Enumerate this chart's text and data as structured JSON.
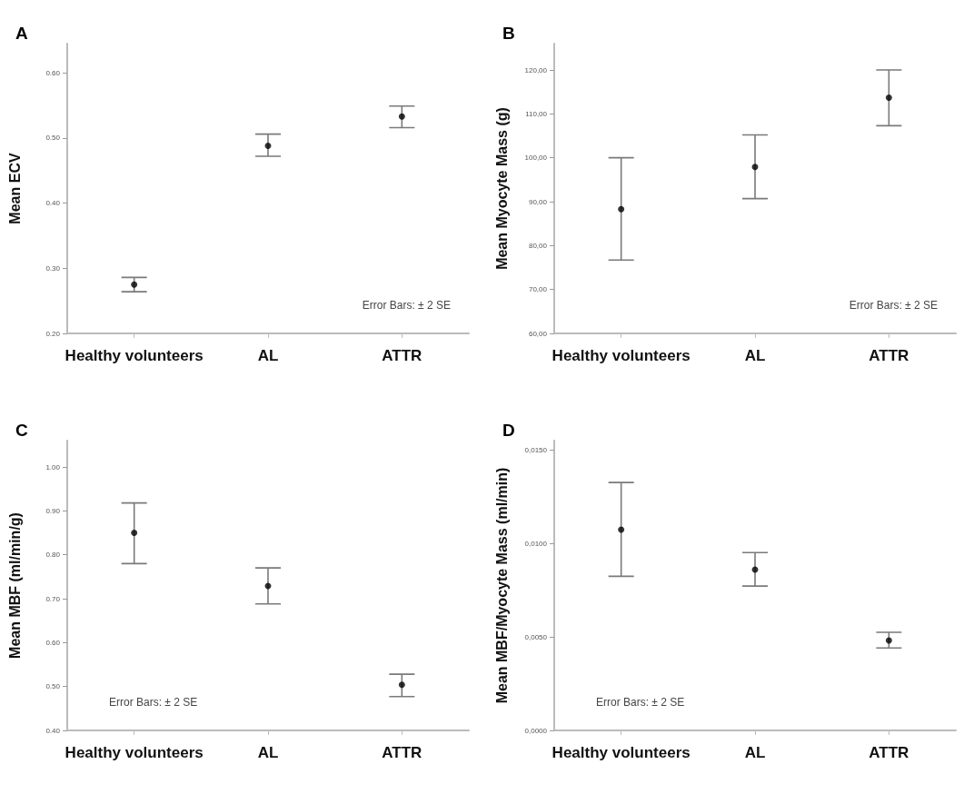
{
  "chart_data": [
    {
      "type": "scatter",
      "title": "A",
      "ylabel": "Mean ECV",
      "categories": [
        "Healthy volunteers",
        "AL",
        "ATTR"
      ],
      "marker": "circle",
      "grid": false,
      "series": [
        {
          "color": "#000000",
          "values": [
            0.275,
            0.488,
            0.533
          ],
          "errors": [
            [
              0.264,
              0.286
            ],
            [
              0.472,
              0.506
            ],
            [
              0.516,
              0.549
            ]
          ]
        }
      ],
      "ylim": [
        0.2,
        0.645
      ],
      "yticks": [
        {
          "value": 0.2,
          "label": "0.20"
        },
        {
          "value": 0.3,
          "label": "0.30"
        },
        {
          "value": 0.4,
          "label": "0.40"
        },
        {
          "value": 0.5,
          "label": "0.50"
        },
        {
          "value": 0.6,
          "label": "0.60"
        }
      ],
      "annotations": [
        "Error Bars: ± 2 SE"
      ]
    },
    {
      "type": "scatter",
      "title": "B",
      "ylabel": "Mean Myocyte Mass (g)",
      "categories": [
        "Healthy volunteers",
        "AL",
        "ATTR"
      ],
      "marker": "circle",
      "grid": false,
      "series": [
        {
          "color": "#000000",
          "values": [
            88.3,
            97.9,
            113.7
          ],
          "errors": [
            [
              76.7,
              100.0
            ],
            [
              90.7,
              105.2
            ],
            [
              107.3,
              120.0
            ]
          ]
        }
      ],
      "ylim": [
        60,
        126
      ],
      "yticks": [
        {
          "value": 60,
          "label": "60,00"
        },
        {
          "value": 70,
          "label": "70,00"
        },
        {
          "value": 80,
          "label": "80,00"
        },
        {
          "value": 90,
          "label": "90,00"
        },
        {
          "value": 100,
          "label": "100,00"
        },
        {
          "value": 110,
          "label": "110,00"
        },
        {
          "value": 120,
          "label": "120,00"
        }
      ],
      "annotations": [
        "Error Bars: ± 2 SE"
      ]
    },
    {
      "type": "scatter",
      "title": "C",
      "ylabel": "Mean MBF (ml/min/g)",
      "categories": [
        "Healthy volunteers",
        "AL",
        "ATTR"
      ],
      "marker": "circle",
      "grid": false,
      "series": [
        {
          "color": "#000000",
          "values": [
            0.85,
            0.729,
            0.504
          ],
          "errors": [
            [
              0.78,
              0.918
            ],
            [
              0.688,
              0.77
            ],
            [
              0.477,
              0.528
            ]
          ]
        }
      ],
      "ylim": [
        0.4,
        1.06
      ],
      "yticks": [
        {
          "value": 0.4,
          "label": "0.40"
        },
        {
          "value": 0.5,
          "label": "0.50"
        },
        {
          "value": 0.6,
          "label": "0.60"
        },
        {
          "value": 0.7,
          "label": "0.70"
        },
        {
          "value": 0.8,
          "label": "0.80"
        },
        {
          "value": 0.9,
          "label": "0.90"
        },
        {
          "value": 1.0,
          "label": "1.00"
        }
      ],
      "annotations": [
        "Error Bars: ± 2 SE"
      ]
    },
    {
      "type": "scatter",
      "title": "D",
      "ylabel": "Mean MBF/Myocyte Mass (ml/min)",
      "categories": [
        "Healthy volunteers",
        "AL",
        "ATTR"
      ],
      "marker": "circle",
      "grid": false,
      "series": [
        {
          "color": "#000000",
          "values": [
            0.01074,
            0.0086,
            0.00481
          ],
          "errors": [
            [
              0.00824,
              0.01326
            ],
            [
              0.00772,
              0.00951
            ],
            [
              0.00441,
              0.00525
            ]
          ]
        }
      ],
      "ylim": [
        0,
        0.0155
      ],
      "yticks": [
        {
          "value": 0,
          "label": "0,0000"
        },
        {
          "value": 0.005,
          "label": "0,0050"
        },
        {
          "value": 0.01,
          "label": "0,0100"
        },
        {
          "value": 0.015,
          "label": "0,0150"
        }
      ],
      "annotations": [
        "Error Bars: ± 2 SE"
      ]
    }
  ]
}
